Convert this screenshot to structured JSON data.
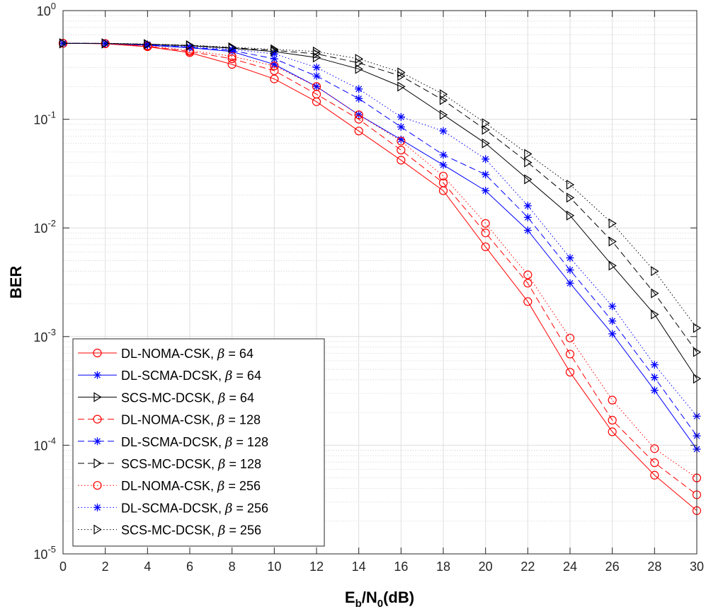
{
  "chart_data": {
    "type": "line",
    "title": "",
    "xlabel": "E_b/N_0(dB)",
    "xlabel_parts": {
      "main": "E",
      "sub1": "b",
      "slash": "/N",
      "sub2": "0",
      "unit": "(dB)"
    },
    "ylabel": "BER",
    "xlim": [
      0,
      30
    ],
    "ylim": [
      1e-05,
      1
    ],
    "yscale": "log",
    "grid": true,
    "legend_position": "bottom-left",
    "x": [
      0,
      2,
      4,
      6,
      8,
      10,
      12,
      14,
      16,
      18,
      20,
      22,
      24,
      26,
      28,
      30
    ],
    "x_ticks": [
      "0",
      "2",
      "4",
      "6",
      "8",
      "10",
      "12",
      "14",
      "16",
      "18",
      "20",
      "22",
      "24",
      "26",
      "28",
      "30"
    ],
    "y_ticks": [
      {
        "base": "10",
        "exp": "0"
      },
      {
        "base": "10",
        "exp": "-1"
      },
      {
        "base": "10",
        "exp": "-2"
      },
      {
        "base": "10",
        "exp": "-3"
      },
      {
        "base": "10",
        "exp": "-4"
      },
      {
        "base": "10",
        "exp": "-5"
      }
    ],
    "colors": {
      "noma": "#ff0000",
      "scma": "#0000ff",
      "scs": "#000000"
    },
    "series": [
      {
        "name": "DL-NOMA-CSK, β = 64",
        "label": "DL-NOMA-CSK,",
        "beta": "β",
        "beta_value": "= 64",
        "color": "#ff0000",
        "dash": "solid",
        "marker": "circle",
        "values": [
          0.5,
          0.495,
          0.465,
          0.41,
          0.32,
          0.235,
          0.145,
          0.078,
          0.042,
          0.022,
          0.0067,
          0.0021,
          0.00047,
          0.000133,
          5.3e-05,
          2.5e-05
        ]
      },
      {
        "name": "DL-SCMA-DCSK, β = 64",
        "label": "DL-SCMA-DCSK,",
        "beta": "β",
        "beta_value": "= 64",
        "color": "#0000ff",
        "dash": "solid",
        "marker": "star",
        "values": [
          0.5,
          0.497,
          0.48,
          0.455,
          0.42,
          0.32,
          0.2,
          0.11,
          0.065,
          0.038,
          0.022,
          0.0095,
          0.0031,
          0.00106,
          0.00032,
          9.2e-05
        ]
      },
      {
        "name": "SCS-MC-DCSK, β = 64",
        "label": "SCS-MC-DCSK,",
        "beta": "β",
        "beta_value": "= 64",
        "color": "#000000",
        "dash": "solid",
        "marker": "triangle",
        "values": [
          0.5,
          0.498,
          0.488,
          0.475,
          0.45,
          0.42,
          0.37,
          0.29,
          0.2,
          0.11,
          0.06,
          0.028,
          0.013,
          0.0045,
          0.0016,
          0.00041
        ]
      },
      {
        "name": "DL-NOMA-CSK, β = 128",
        "label": "DL-NOMA-CSK,",
        "beta": "β",
        "beta_value": "= 128",
        "color": "#ff0000",
        "dash": "dashed",
        "marker": "circle",
        "values": [
          0.5,
          0.497,
          0.47,
          0.42,
          0.36,
          0.28,
          0.17,
          0.1,
          0.052,
          0.026,
          0.009,
          0.0031,
          0.00069,
          0.00017,
          6.9e-05,
          3.5e-05
        ]
      },
      {
        "name": "DL-SCMA-DCSK, β = 128",
        "label": "DL-SCMA-DCSK,",
        "beta": "β",
        "beta_value": "= 128",
        "color": "#0000ff",
        "dash": "dashed",
        "marker": "star",
        "values": [
          0.5,
          0.498,
          0.484,
          0.46,
          0.43,
          0.36,
          0.25,
          0.155,
          0.085,
          0.047,
          0.031,
          0.0125,
          0.0041,
          0.00139,
          0.00042,
          0.000122
        ]
      },
      {
        "name": "SCS-MC-DCSK, β = 128",
        "label": "SCS-MC-DCSK,",
        "beta": "β",
        "beta_value": "= 128",
        "color": "#000000",
        "dash": "dashed",
        "marker": "triangle",
        "values": [
          0.5,
          0.499,
          0.49,
          0.478,
          0.455,
          0.43,
          0.4,
          0.33,
          0.25,
          0.15,
          0.08,
          0.04,
          0.019,
          0.0075,
          0.0025,
          0.00072
        ]
      },
      {
        "name": "DL-NOMA-CSK, β = 256",
        "label": "DL-NOMA-CSK,",
        "beta": "β",
        "beta_value": "= 256",
        "color": "#ff0000",
        "dash": "dotted",
        "marker": "circle",
        "values": [
          0.5,
          0.498,
          0.475,
          0.43,
          0.38,
          0.31,
          0.2,
          0.11,
          0.063,
          0.03,
          0.011,
          0.0037,
          0.00097,
          0.00026,
          9.3e-05,
          5e-05
        ]
      },
      {
        "name": "DL-SCMA-DCSK, β = 256",
        "label": "DL-SCMA-DCSK,",
        "beta": "β",
        "beta_value": "= 256",
        "color": "#0000ff",
        "dash": "dotted",
        "marker": "star",
        "values": [
          0.5,
          0.499,
          0.488,
          0.465,
          0.44,
          0.4,
          0.3,
          0.19,
          0.105,
          0.078,
          0.043,
          0.016,
          0.0053,
          0.0019,
          0.00055,
          0.000185
        ]
      },
      {
        "name": "SCS-MC-DCSK, β = 256",
        "label": "SCS-MC-DCSK,",
        "beta": "β",
        "beta_value": "= 256",
        "color": "#000000",
        "dash": "dotted",
        "marker": "triangle",
        "values": [
          0.5,
          0.5,
          0.492,
          0.48,
          0.46,
          0.44,
          0.42,
          0.36,
          0.27,
          0.17,
          0.092,
          0.048,
          0.025,
          0.011,
          0.004,
          0.0012
        ]
      }
    ]
  }
}
